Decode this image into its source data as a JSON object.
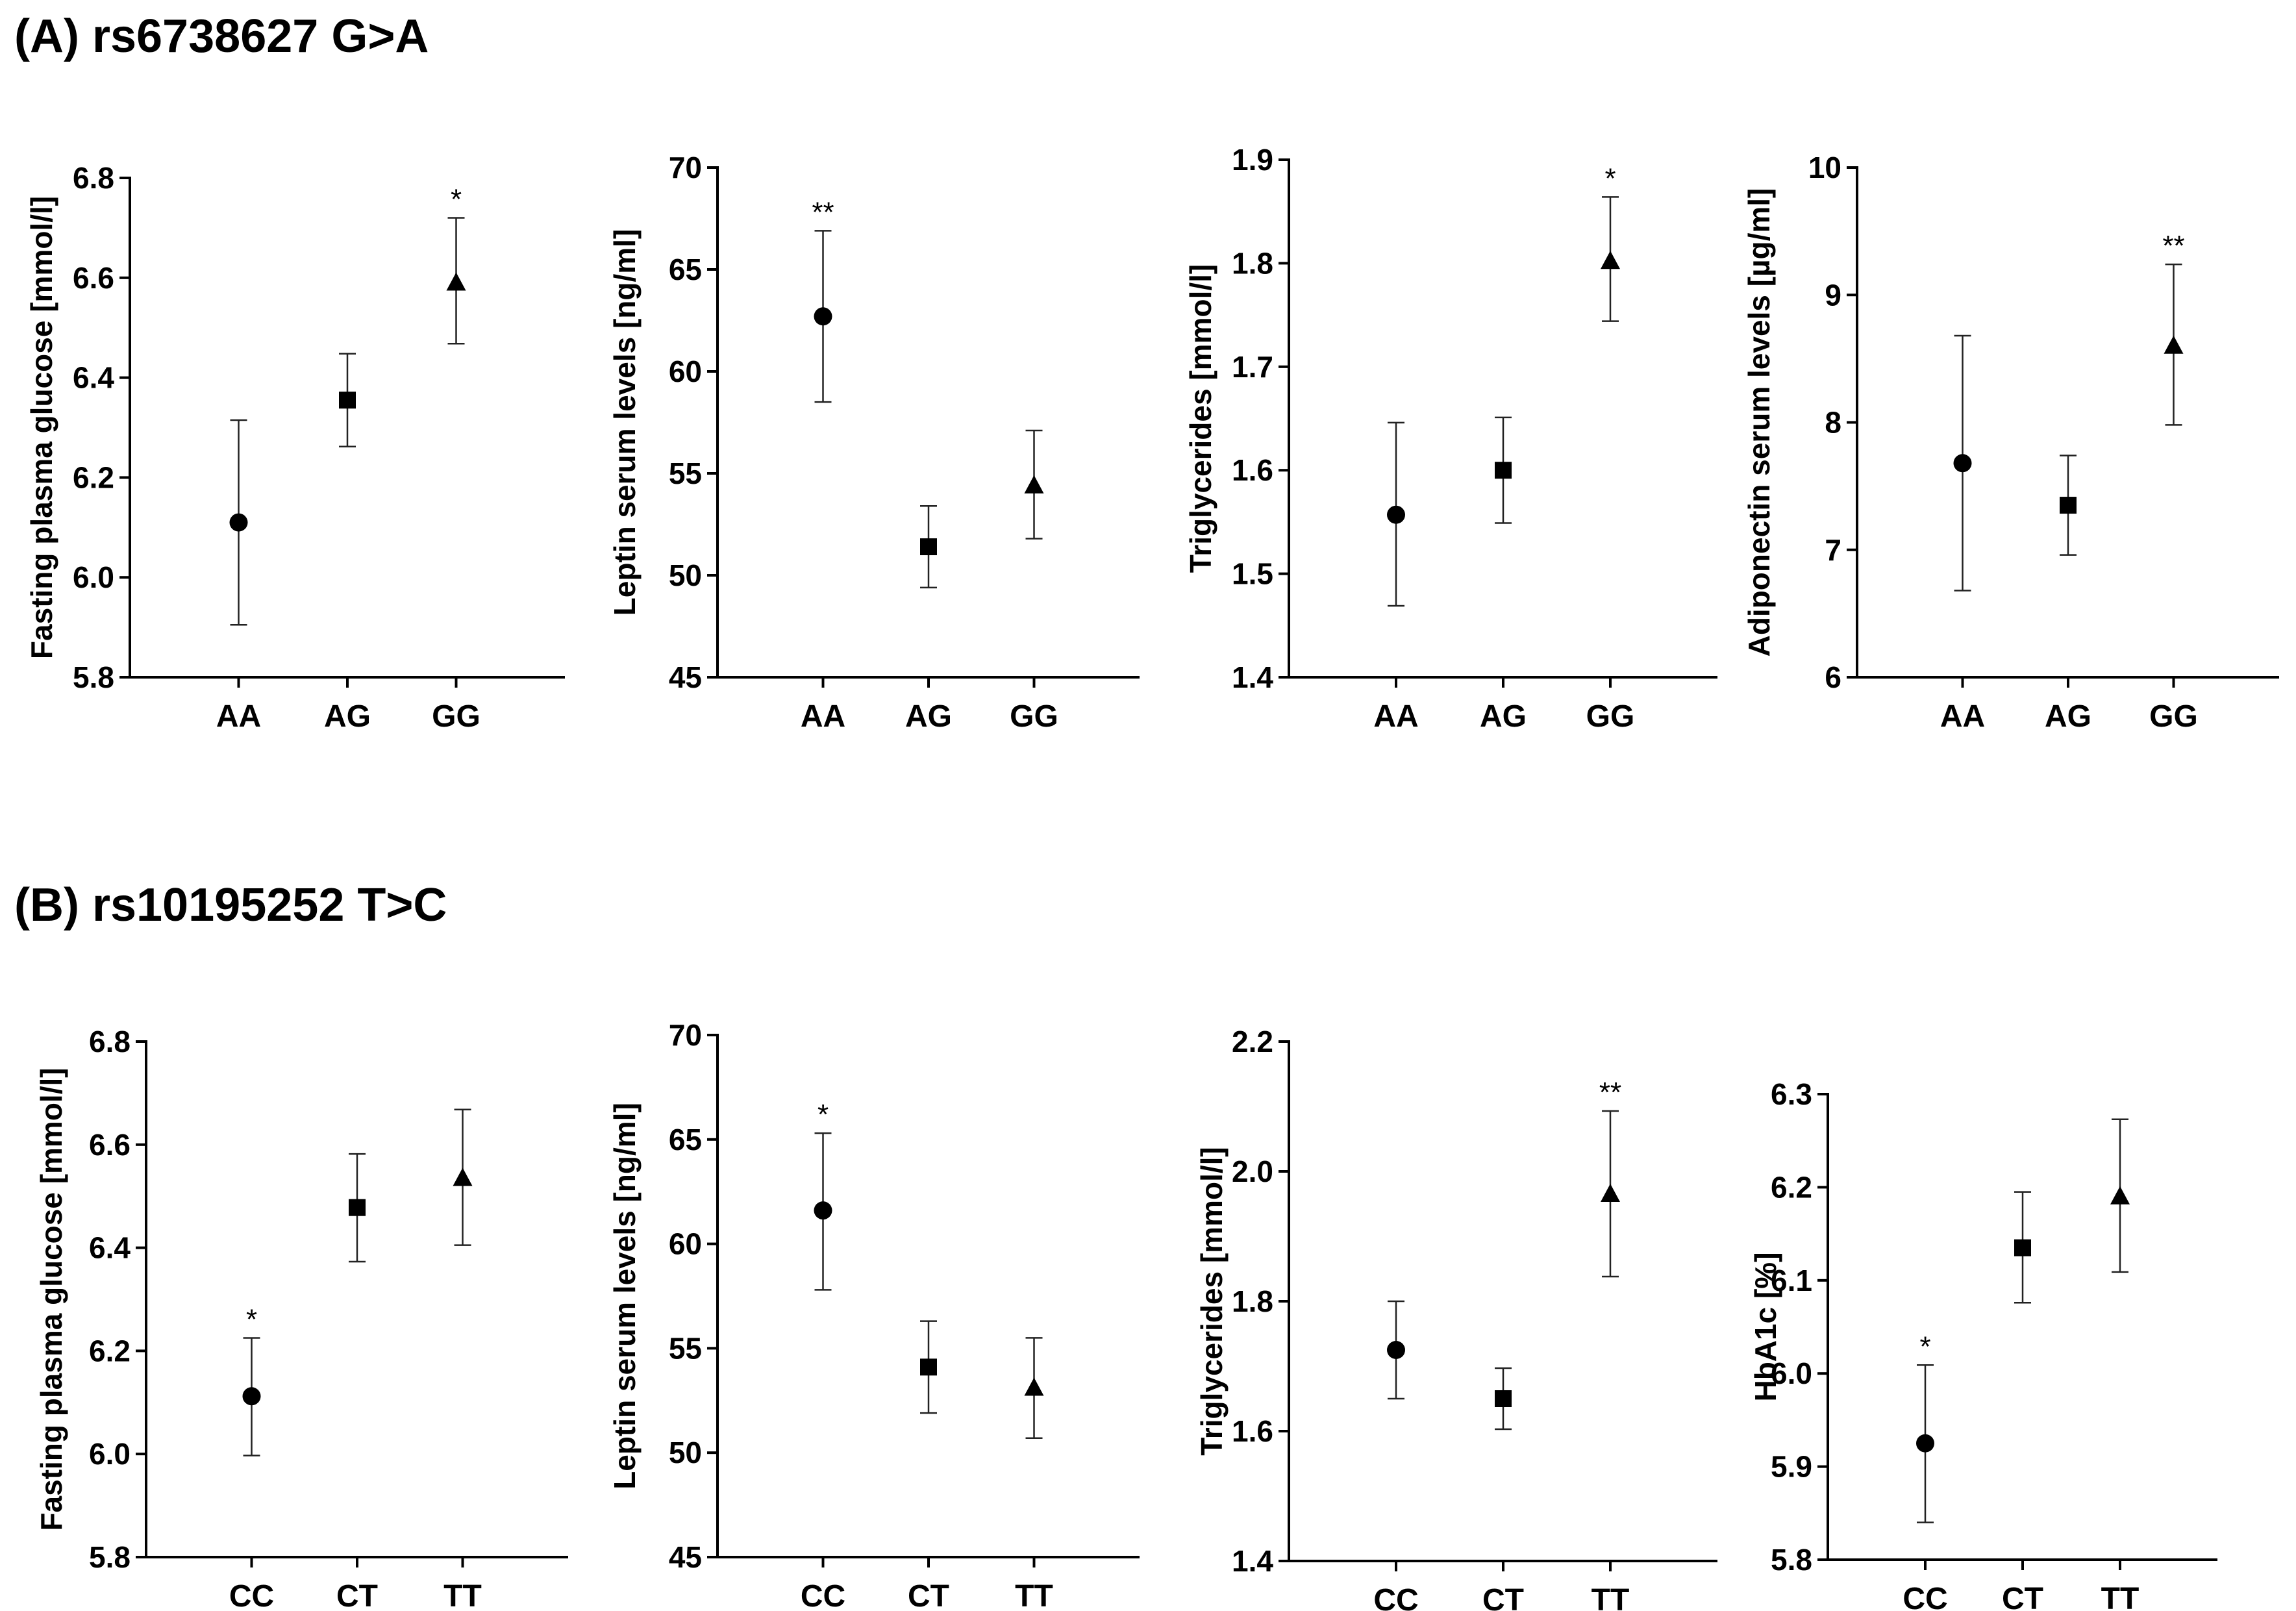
{
  "panels": [
    {
      "heading": "(A) rs6738627 G>A"
    },
    {
      "heading": "(B) rs10195252 T>C"
    }
  ],
  "chart_data": [
    {
      "type": "scatter",
      "panel": "A",
      "ylabel": "Fasting plasma glucose [mmol/l]",
      "categories": [
        "AA",
        "AG",
        "GG"
      ],
      "values": [
        6.11,
        6.355,
        6.59
      ],
      "err_low": [
        5.905,
        6.262,
        6.468
      ],
      "err_high": [
        6.315,
        6.448,
        6.72
      ],
      "markers": [
        "circle",
        "square",
        "triangle"
      ],
      "significance": [
        "",
        "",
        "*"
      ],
      "ylim": [
        5.8,
        6.8
      ],
      "yticks": [
        "5.8",
        "6.0",
        "6.2",
        "6.4",
        "6.6",
        "6.8"
      ]
    },
    {
      "type": "scatter",
      "panel": "A",
      "ylabel": "Leptin serum levels [ng/ml]",
      "categories": [
        "AA",
        "AG",
        "GG"
      ],
      "values": [
        62.7,
        51.4,
        54.4
      ],
      "err_low": [
        58.5,
        49.4,
        51.8
      ],
      "err_high": [
        66.9,
        53.4,
        57.1
      ],
      "markers": [
        "circle",
        "square",
        "triangle"
      ],
      "significance": [
        "**",
        "",
        ""
      ],
      "ylim": [
        45,
        70
      ],
      "yticks": [
        "45",
        "50",
        "55",
        "60",
        "65",
        "70"
      ]
    },
    {
      "type": "scatter",
      "panel": "A",
      "ylabel": "Triglycerides [mmol/l]",
      "categories": [
        "AA",
        "AG",
        "GG"
      ],
      "values": [
        1.557,
        1.6,
        1.802
      ],
      "err_low": [
        1.469,
        1.549,
        1.744
      ],
      "err_high": [
        1.646,
        1.651,
        1.864
      ],
      "markers": [
        "circle",
        "square",
        "triangle"
      ],
      "significance": [
        "",
        "",
        "*"
      ],
      "ylim": [
        1.4,
        1.9
      ],
      "yticks": [
        "1.4",
        "1.5",
        "1.6",
        "1.7",
        "1.8",
        "1.9"
      ]
    },
    {
      "type": "scatter",
      "panel": "A",
      "ylabel": "Adiponectin serum levels [µg/ml]",
      "categories": [
        "AA",
        "AG",
        "GG"
      ],
      "values": [
        7.68,
        7.35,
        8.6
      ],
      "err_low": [
        6.68,
        6.96,
        7.98
      ],
      "err_high": [
        8.68,
        7.74,
        9.24
      ],
      "markers": [
        "circle",
        "square",
        "triangle"
      ],
      "significance": [
        "",
        "",
        "**"
      ],
      "ylim": [
        6,
        10
      ],
      "yticks": [
        "6",
        "7",
        "8",
        "9",
        "10"
      ]
    },
    {
      "type": "scatter",
      "panel": "B",
      "ylabel": "Fasting plasma glucose [mmol/l]",
      "categories": [
        "CC",
        "CT",
        "TT"
      ],
      "values": [
        6.112,
        6.478,
        6.535
      ],
      "err_low": [
        5.997,
        6.373,
        6.405
      ],
      "err_high": [
        6.225,
        6.582,
        6.668
      ],
      "markers": [
        "circle",
        "square",
        "triangle"
      ],
      "significance": [
        "*",
        "",
        ""
      ],
      "ylim": [
        5.8,
        6.8
      ],
      "yticks": [
        "5.8",
        "6.0",
        "6.2",
        "6.4",
        "6.6",
        "6.8"
      ]
    },
    {
      "type": "scatter",
      "panel": "B",
      "ylabel": "Leptin serum levels [ng/ml]",
      "categories": [
        "CC",
        "CT",
        "TT"
      ],
      "values": [
        61.6,
        54.1,
        53.1
      ],
      "err_low": [
        57.8,
        51.9,
        50.7
      ],
      "err_high": [
        65.3,
        56.3,
        55.5
      ],
      "markers": [
        "circle",
        "square",
        "triangle"
      ],
      "significance": [
        "*",
        "",
        ""
      ],
      "ylim": [
        45,
        70
      ],
      "yticks": [
        "45",
        "50",
        "55",
        "60",
        "65",
        "70"
      ]
    },
    {
      "type": "scatter",
      "panel": "B",
      "ylabel": "Triglycerides [mmol/l]",
      "categories": [
        "CC",
        "CT",
        "TT"
      ],
      "values": [
        1.725,
        1.65,
        1.965
      ],
      "err_low": [
        1.65,
        1.603,
        1.838
      ],
      "err_high": [
        1.8,
        1.697,
        2.093
      ],
      "markers": [
        "circle",
        "square",
        "triangle"
      ],
      "significance": [
        "",
        "",
        "**"
      ],
      "ylim": [
        1.4,
        2.2
      ],
      "yticks": [
        "1.4",
        "1.6",
        "1.8",
        "2.0",
        "2.2"
      ]
    },
    {
      "type": "scatter",
      "panel": "B",
      "ylabel": "HbA1c [%]",
      "categories": [
        "CC",
        "CT",
        "TT"
      ],
      "values": [
        5.925,
        6.135,
        6.19
      ],
      "err_low": [
        5.84,
        6.076,
        6.109
      ],
      "err_high": [
        6.009,
        6.195,
        6.273
      ],
      "markers": [
        "circle",
        "square",
        "triangle"
      ],
      "significance": [
        "*",
        "",
        ""
      ],
      "ylim": [
        5.8,
        6.3
      ],
      "yticks": [
        "5.8",
        "5.9",
        "6.0",
        "6.1",
        "6.2",
        "6.3"
      ]
    }
  ]
}
